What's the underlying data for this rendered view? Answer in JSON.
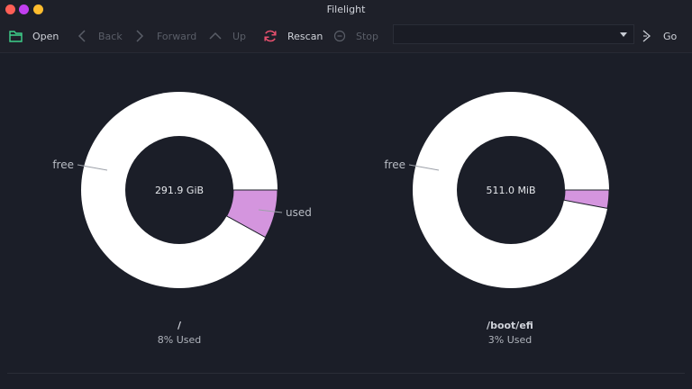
{
  "window": {
    "title": "Filelight",
    "controls": {
      "close_color": "#ff5f56",
      "minimize_color": "#c23ff0",
      "maximize_color": "#ffbd2e"
    }
  },
  "toolbar": {
    "open": "Open",
    "back": "Back",
    "forward": "Forward",
    "up": "Up",
    "rescan": "Rescan",
    "stop": "Stop",
    "location_value": "",
    "go": "Go"
  },
  "colors": {
    "used_slice": "#d495de",
    "free_slice": "#ffffff",
    "background": "#1b1e28",
    "open_icon": "#3fd18c",
    "rescan_icon": "#e8506e"
  },
  "disks": [
    {
      "mount": "/",
      "capacity": "291.9 GiB",
      "usage_text": "8% Used",
      "used_fraction": 0.08,
      "label_free": "free",
      "label_used": "used"
    },
    {
      "mount": "/boot/efi",
      "capacity": "511.0 MiB",
      "usage_text": "3% Used",
      "used_fraction": 0.03,
      "label_free": "free"
    }
  ]
}
